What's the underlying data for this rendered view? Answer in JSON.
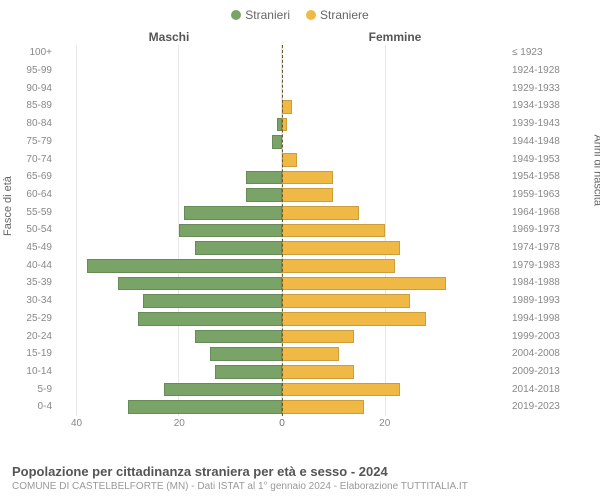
{
  "legend": {
    "male_label": "Stranieri",
    "female_label": "Straniere"
  },
  "column_headers": {
    "left": "Maschi",
    "right": "Femmine"
  },
  "axis_labels": {
    "left": "Fasce di età",
    "right": "Anni di nascita"
  },
  "colors": {
    "male_bar": "#7aa368",
    "female_bar": "#f0b946",
    "grid": "#e8e8e8",
    "center_line": "#6b5a2e",
    "background": "#ffffff",
    "text_primary": "#555555",
    "text_secondary": "#888888"
  },
  "chart": {
    "type": "population-pyramid",
    "x_max": 44,
    "x_ticks_left": [
      40,
      20,
      0
    ],
    "x_ticks_right": [
      0,
      20
    ],
    "bar_height_ratio": 0.78
  },
  "age_groups": [
    {
      "label": "100+",
      "birth": "≤ 1923",
      "male": 0,
      "female": 0
    },
    {
      "label": "95-99",
      "birth": "1924-1928",
      "male": 0,
      "female": 0
    },
    {
      "label": "90-94",
      "birth": "1929-1933",
      "male": 0,
      "female": 0
    },
    {
      "label": "85-89",
      "birth": "1934-1938",
      "male": 0,
      "female": 2
    },
    {
      "label": "80-84",
      "birth": "1939-1943",
      "male": 1,
      "female": 1
    },
    {
      "label": "75-79",
      "birth": "1944-1948",
      "male": 2,
      "female": 0
    },
    {
      "label": "70-74",
      "birth": "1949-1953",
      "male": 0,
      "female": 3
    },
    {
      "label": "65-69",
      "birth": "1954-1958",
      "male": 7,
      "female": 10
    },
    {
      "label": "60-64",
      "birth": "1959-1963",
      "male": 7,
      "female": 10
    },
    {
      "label": "55-59",
      "birth": "1964-1968",
      "male": 19,
      "female": 15
    },
    {
      "label": "50-54",
      "birth": "1969-1973",
      "male": 20,
      "female": 20
    },
    {
      "label": "45-49",
      "birth": "1974-1978",
      "male": 17,
      "female": 23
    },
    {
      "label": "40-44",
      "birth": "1979-1983",
      "male": 38,
      "female": 22
    },
    {
      "label": "35-39",
      "birth": "1984-1988",
      "male": 32,
      "female": 32
    },
    {
      "label": "30-34",
      "birth": "1989-1993",
      "male": 27,
      "female": 25
    },
    {
      "label": "25-29",
      "birth": "1994-1998",
      "male": 28,
      "female": 28
    },
    {
      "label": "20-24",
      "birth": "1999-2003",
      "male": 17,
      "female": 14
    },
    {
      "label": "15-19",
      "birth": "2004-2008",
      "male": 14,
      "female": 11
    },
    {
      "label": "10-14",
      "birth": "2009-2013",
      "male": 13,
      "female": 14
    },
    {
      "label": "5-9",
      "birth": "2014-2018",
      "male": 23,
      "female": 23
    },
    {
      "label": "0-4",
      "birth": "2019-2023",
      "male": 30,
      "female": 16
    }
  ],
  "footer": {
    "title": "Popolazione per cittadinanza straniera per età e sesso - 2024",
    "subtitle": "COMUNE DI CASTELBELFORTE (MN) - Dati ISTAT al 1° gennaio 2024 - Elaborazione TUTTITALIA.IT"
  }
}
